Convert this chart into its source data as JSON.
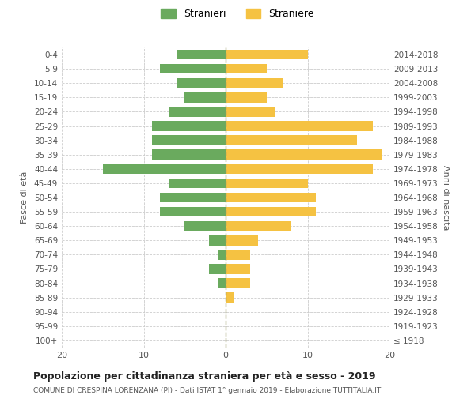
{
  "age_groups": [
    "100+",
    "95-99",
    "90-94",
    "85-89",
    "80-84",
    "75-79",
    "70-74",
    "65-69",
    "60-64",
    "55-59",
    "50-54",
    "45-49",
    "40-44",
    "35-39",
    "30-34",
    "25-29",
    "20-24",
    "15-19",
    "10-14",
    "5-9",
    "0-4"
  ],
  "birth_years": [
    "≤ 1918",
    "1919-1923",
    "1924-1928",
    "1929-1933",
    "1934-1938",
    "1939-1943",
    "1944-1948",
    "1949-1953",
    "1954-1958",
    "1959-1963",
    "1964-1968",
    "1969-1973",
    "1974-1978",
    "1979-1983",
    "1984-1988",
    "1989-1993",
    "1994-1998",
    "1999-2003",
    "2004-2008",
    "2009-2013",
    "2014-2018"
  ],
  "males": [
    0,
    0,
    0,
    0,
    1,
    2,
    1,
    2,
    5,
    8,
    8,
    7,
    15,
    9,
    9,
    9,
    7,
    5,
    6,
    8,
    6
  ],
  "females": [
    0,
    0,
    0,
    1,
    3,
    3,
    3,
    4,
    8,
    11,
    11,
    10,
    18,
    19,
    16,
    18,
    6,
    5,
    7,
    5,
    10
  ],
  "male_color": "#6aaa5e",
  "female_color": "#f5c242",
  "background_color": "#ffffff",
  "grid_color": "#cccccc",
  "title": "Popolazione per cittadinanza straniera per età e sesso - 2019",
  "subtitle": "COMUNE DI CRESPINA LORENZANA (PI) - Dati ISTAT 1° gennaio 2019 - Elaborazione TUTTITALIA.IT",
  "ylabel_left": "Fasce di età",
  "ylabel_right": "Anni di nascita",
  "legend_male": "Stranieri",
  "legend_female": "Straniere",
  "xlim": 20
}
